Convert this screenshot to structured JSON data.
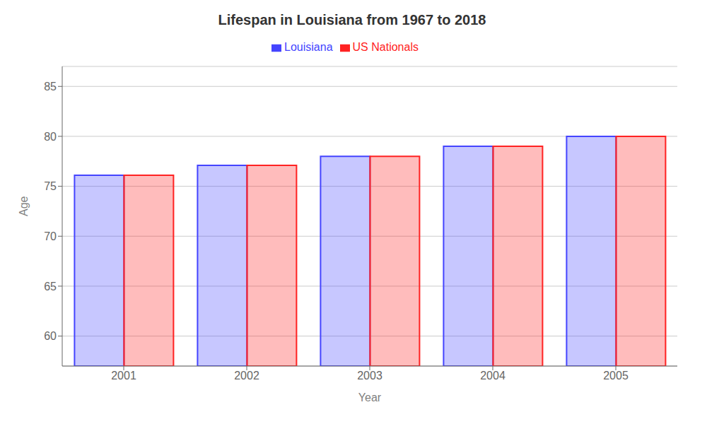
{
  "chart_data": {
    "type": "bar",
    "title": "Lifespan in Louisiana from 1967 to 2018",
    "x_label": "Year",
    "y_label": "Age",
    "categories": [
      "2001",
      "2002",
      "2003",
      "2004",
      "2005"
    ],
    "series": [
      {
        "name": "Louisiana",
        "color": "#4444ff",
        "values": [
          76.1,
          77.1,
          78.0,
          79.0,
          80.0
        ]
      },
      {
        "name": "US Nationals",
        "color": "#ff2222",
        "values": [
          76.1,
          77.1,
          78.0,
          79.0,
          80.0
        ]
      }
    ],
    "ylim": [
      57,
      87
    ],
    "yticks": [
      60,
      65,
      70,
      75,
      80,
      85
    ],
    "grid": true,
    "legend": "top"
  }
}
